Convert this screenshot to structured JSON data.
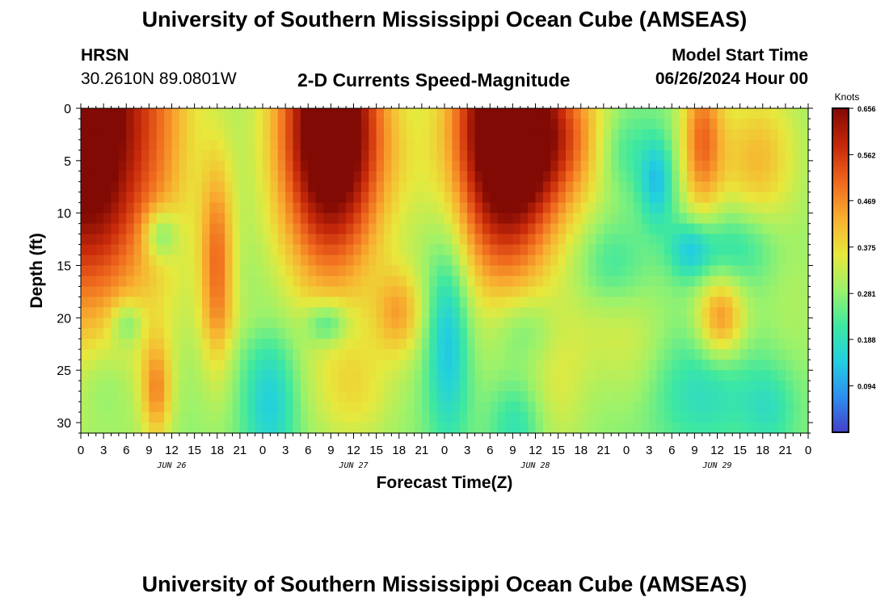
{
  "header": {
    "title": "University of Southern Mississippi Ocean Cube (AMSEAS)",
    "station": "HRSN",
    "coords": "30.2610N  89.0801W",
    "subtitle": "2-D Currents Speed-Magnitude",
    "model_label": "Model Start Time",
    "model_time": "06/26/2024 Hour 00"
  },
  "footer": {
    "title": "University of Southern Mississippi Ocean Cube (AMSEAS)"
  },
  "colors": {
    "colormap": [
      "#4440c8",
      "#2e8ef0",
      "#22cfe0",
      "#3ee8a0",
      "#9cf26a",
      "#e8e83c",
      "#f8b030",
      "#f06a1e",
      "#c82a0a",
      "#820a04"
    ]
  },
  "chart_data": {
    "type": "heatmap",
    "title": "2-D Currents Speed-Magnitude",
    "xlabel": "Forecast Time(Z)",
    "ylabel": "Depth (ft)",
    "x_hours_range": [
      0,
      96
    ],
    "ylim": [
      0,
      31
    ],
    "x_tick_labels": [
      "0",
      "3",
      "6",
      "9",
      "12",
      "15",
      "18",
      "21",
      "0",
      "3",
      "6",
      "9",
      "12",
      "15",
      "18",
      "21",
      "0",
      "3",
      "6",
      "9",
      "12",
      "15",
      "18",
      "21",
      "0",
      "3",
      "6",
      "9",
      "12",
      "15",
      "18",
      "21",
      "0"
    ],
    "y_ticks": [
      0,
      5,
      10,
      15,
      20,
      25,
      30
    ],
    "y_tick_labels": [
      "0",
      "5",
      "10",
      "15",
      "20",
      "25",
      "30"
    ],
    "date_labels": [
      {
        "label": "JUN 26",
        "hour": 12
      },
      {
        "label": "JUN 27",
        "hour": 36
      },
      {
        "label": "JUN 28",
        "hour": 60
      },
      {
        "label": "JUN 29",
        "hour": 84
      }
    ],
    "colorbar": {
      "title": "Knots",
      "range": [
        0.0,
        0.656
      ],
      "tick_labels": [
        "0.656",
        "0.562",
        "0.469",
        "0.375",
        "0.281",
        "0.188",
        "0.094"
      ],
      "tick_values": [
        0.656,
        0.562,
        0.469,
        0.375,
        0.281,
        0.188,
        0.094
      ]
    },
    "blobs": [
      {
        "t": 0,
        "d": 0,
        "st": 8,
        "sd": 14,
        "v": 0.7
      },
      {
        "t": 2.5,
        "d": 8,
        "st": 3,
        "sd": 6,
        "v": 0.06
      },
      {
        "t": 11,
        "d": 2,
        "st": 3,
        "sd": 12,
        "v": 0.06
      },
      {
        "t": 10.5,
        "d": 12,
        "st": 1.6,
        "sd": 1.8,
        "v": -0.22
      },
      {
        "t": 10,
        "d": 27,
        "st": 1.4,
        "sd": 3.5,
        "v": 0.26
      },
      {
        "t": 18,
        "d": 15,
        "st": 1.6,
        "sd": 7,
        "v": 0.32
      },
      {
        "t": 6,
        "d": 20.5,
        "st": 1.5,
        "sd": 1.5,
        "v": -0.17
      },
      {
        "t": 3,
        "d": 26,
        "st": 2.5,
        "sd": 3,
        "v": -0.08
      },
      {
        "t": 33,
        "d": 2,
        "st": 5,
        "sd": 10,
        "v": 0.76
      },
      {
        "t": 21.5,
        "d": 20,
        "st": 4,
        "sd": 2,
        "v": 0.04
      },
      {
        "t": 25,
        "d": 28,
        "st": 2.5,
        "sd": 5,
        "v": -0.2
      },
      {
        "t": 32.5,
        "d": 20.5,
        "st": 2,
        "sd": 1.5,
        "v": -0.2
      },
      {
        "t": 36,
        "d": 27,
        "st": 4,
        "sd": 4,
        "v": 0.14
      },
      {
        "t": 42,
        "d": 19.5,
        "st": 2.3,
        "sd": 3,
        "v": 0.23
      },
      {
        "t": 43,
        "d": 5,
        "st": 4,
        "sd": 4,
        "v": 0.04
      },
      {
        "t": 48.5,
        "d": 22,
        "st": 2,
        "sd": 7,
        "v": -0.24
      },
      {
        "t": 56,
        "d": 2,
        "st": 5,
        "sd": 10,
        "v": 0.78
      },
      {
        "t": 58.5,
        "d": 21,
        "st": 3,
        "sd": 2.5,
        "v": -0.12
      },
      {
        "t": 57.5,
        "d": 30,
        "st": 2.5,
        "sd": 3,
        "v": -0.14
      },
      {
        "t": 63,
        "d": 27,
        "st": 3,
        "sd": 5,
        "v": 0.1
      },
      {
        "t": 64,
        "d": 3,
        "st": 4.5,
        "sd": 5,
        "v": 0.25
      },
      {
        "t": 71.5,
        "d": 4,
        "st": 2.5,
        "sd": 3,
        "v": -0.12
      },
      {
        "t": 70,
        "d": 21,
        "st": 5,
        "sd": 3.5,
        "v": 0.08
      },
      {
        "t": 76,
        "d": 7,
        "st": 1.6,
        "sd": 3,
        "v": -0.22
      },
      {
        "t": 73,
        "d": 25,
        "st": 3,
        "sd": 4,
        "v": 0.05
      },
      {
        "t": 70,
        "d": 15,
        "st": 3,
        "sd": 3,
        "v": -0.1
      },
      {
        "t": 82,
        "d": 3,
        "st": 2,
        "sd": 5.5,
        "v": 0.34
      },
      {
        "t": 80.5,
        "d": 13.5,
        "st": 2,
        "sd": 2,
        "v": -0.2
      },
      {
        "t": 86.5,
        "d": 13,
        "st": 4,
        "sd": 2.8,
        "v": -0.15
      },
      {
        "t": 84.5,
        "d": 20,
        "st": 2.2,
        "sd": 2.8,
        "v": 0.3
      },
      {
        "t": 89,
        "d": 5,
        "st": 3.5,
        "sd": 5,
        "v": 0.22
      },
      {
        "t": 82,
        "d": 27,
        "st": 5,
        "sd": 4,
        "v": -0.14
      },
      {
        "t": 91,
        "d": 28.5,
        "st": 2.5,
        "sd": 3,
        "v": -0.12
      },
      {
        "t": 94,
        "d": 18,
        "st": 3,
        "sd": 6,
        "v": 0.05
      },
      {
        "t": 94,
        "d": 2,
        "st": 3,
        "sd": 5,
        "v": 0.03
      }
    ]
  }
}
